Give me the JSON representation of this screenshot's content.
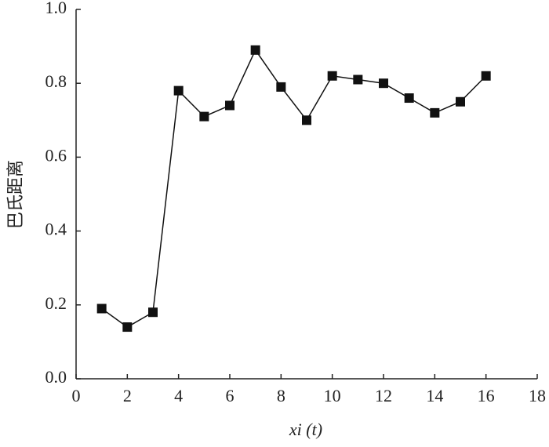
{
  "chart_data": {
    "type": "line",
    "x_label": "xi (t)",
    "y_label": "巴氏距离",
    "x": [
      1,
      2,
      3,
      4,
      5,
      6,
      7,
      8,
      9,
      10,
      11,
      12,
      13,
      14,
      15,
      16
    ],
    "values": [
      0.19,
      0.14,
      0.18,
      0.78,
      0.71,
      0.74,
      0.89,
      0.79,
      0.7,
      0.82,
      0.81,
      0.8,
      0.76,
      0.72,
      0.75,
      0.82
    ],
    "color": "#111111",
    "xlim": [
      0,
      18
    ],
    "xticks": [
      0,
      2,
      4,
      6,
      8,
      10,
      12,
      14,
      16,
      18
    ],
    "ylim": [
      0,
      1
    ],
    "yticks": [
      {
        "value": 0,
        "label": "0.0"
      },
      {
        "value": 0.2,
        "label": "0.2"
      },
      {
        "value": 0.4,
        "label": "0.4"
      },
      {
        "value": 0.6,
        "label": "0.6"
      },
      {
        "value": 0.8,
        "label": "0.8"
      },
      {
        "value": 1,
        "label": "1.0"
      }
    ],
    "grid": false
  }
}
